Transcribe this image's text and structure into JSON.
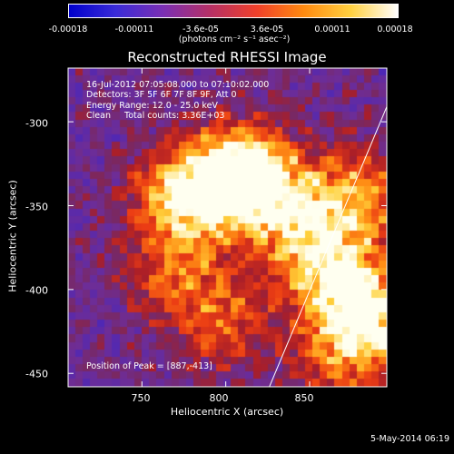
{
  "colorbar": {
    "ticks": [
      "-0.00018",
      "-0.00011",
      "-3.6e-05",
      "3.6e-05",
      "0.00011",
      "0.00018"
    ],
    "units_line": "(photons cm⁻² s⁻¹ asec⁻²)",
    "colors": [
      "#0000cc",
      "#3a2bd8",
      "#7a2fb4",
      "#b63066",
      "#f0402a",
      "#ff8a10",
      "#ffd040",
      "#ffffff"
    ]
  },
  "title": "Reconstructed RHESSI Image",
  "info": {
    "time": "16-Jul-2012 07:05:08.000 to 07:10:02.000",
    "detectors": "Detectors: 3F 5F 6F 7F 8F 9F, Att 0",
    "energy": "Energy Range: 12.0 - 25.0 keV",
    "clean": "Clean     Total counts: 3.36E+03"
  },
  "peak": "Position of Peak = [887,-413]",
  "axes": {
    "xlabel": "Heliocentric X (arcsec)",
    "ylabel": "Heliocentric Y (arcsec)",
    "xticks": [
      "750",
      "800",
      "850"
    ],
    "yticks": [
      "-300",
      "-350",
      "-400",
      "-450"
    ]
  },
  "timestamp": "5-May-2014 06:19",
  "chart_data": {
    "type": "heatmap",
    "title": "Reconstructed RHESSI Image",
    "xlabel": "Heliocentric X (arcsec)",
    "ylabel": "Heliocentric Y (arcsec)",
    "xlim": [
      706,
      896
    ],
    "ylim": [
      -458,
      -268
    ],
    "xticks": [
      750,
      800,
      850
    ],
    "yticks": [
      -300,
      -350,
      -400,
      -450
    ],
    "colorbar_range": [
      -0.00018,
      0.00018
    ],
    "colorbar_ticks": [
      -0.00018,
      -0.00011,
      -3.6e-05,
      3.6e-05,
      0.00011,
      0.00018
    ],
    "limb_line": [
      [
        826,
        -458
      ],
      [
        896,
        -291
      ]
    ],
    "peak_position": [
      887,
      -413
    ],
    "bright_regions": [
      {
        "x": 795,
        "y": -340,
        "level": 0.85
      },
      {
        "x": 815,
        "y": -330,
        "level": 0.95
      },
      {
        "x": 770,
        "y": -345,
        "level": 0.7
      },
      {
        "x": 840,
        "y": -355,
        "level": 0.75
      },
      {
        "x": 880,
        "y": -345,
        "level": 0.8
      },
      {
        "x": 887,
        "y": -413,
        "level": 1.0
      },
      {
        "x": 860,
        "y": -390,
        "level": 0.85
      },
      {
        "x": 770,
        "y": -390,
        "level": 0.6
      },
      {
        "x": 800,
        "y": -420,
        "level": 0.55
      },
      {
        "x": 870,
        "y": -440,
        "level": 0.6
      }
    ]
  }
}
